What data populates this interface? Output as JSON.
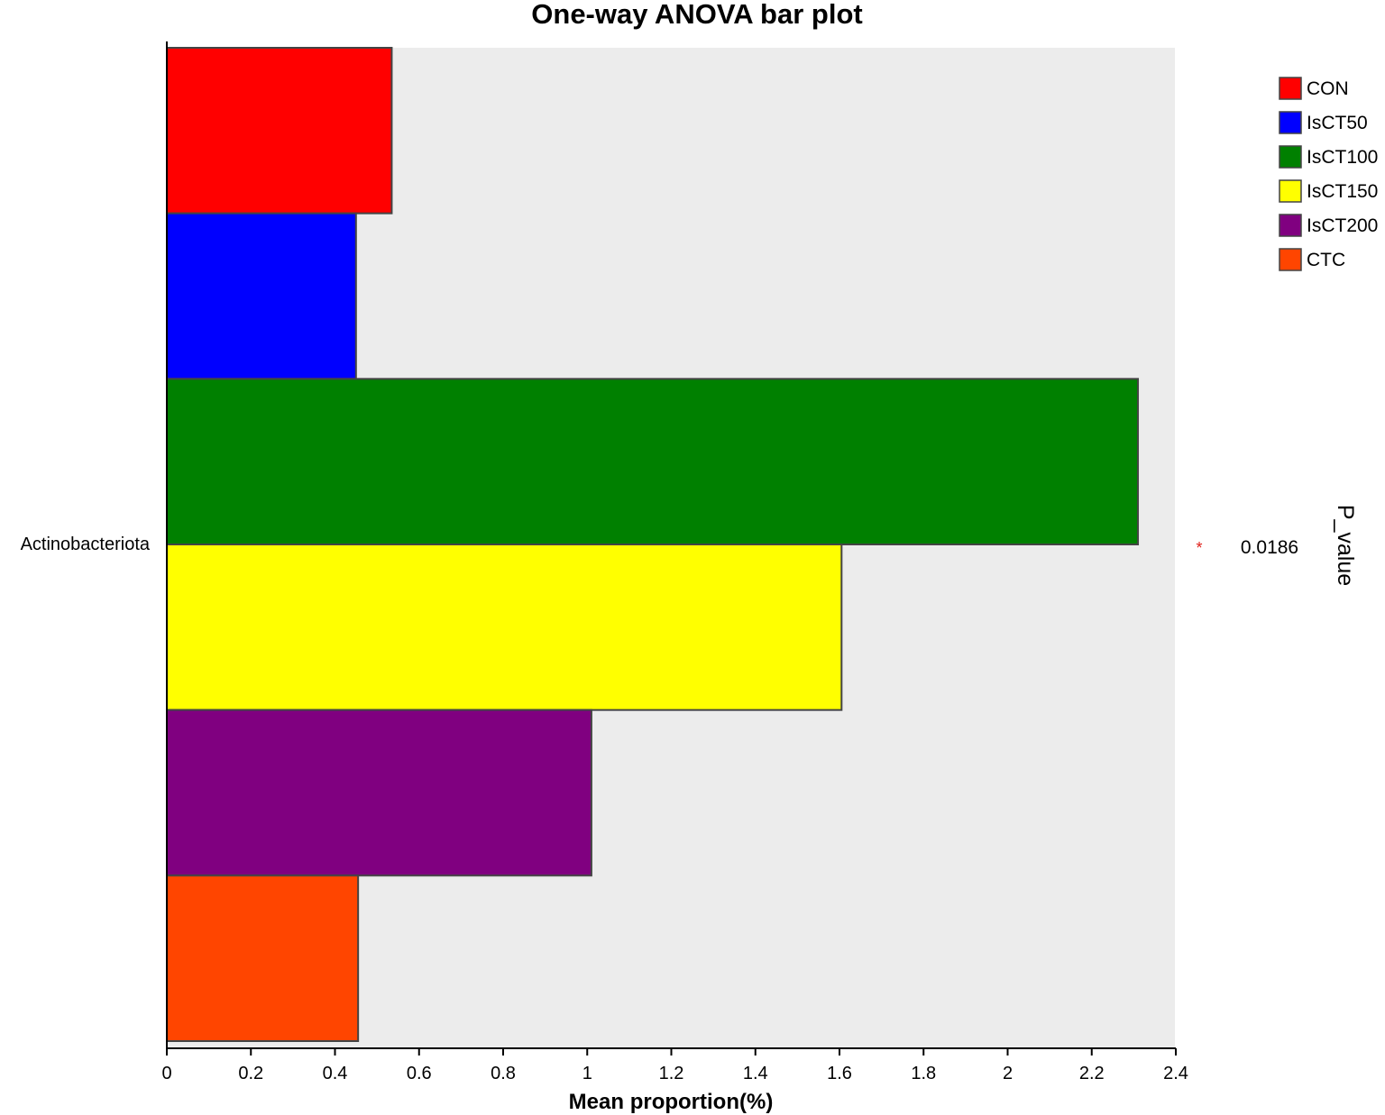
{
  "chart_data": {
    "type": "bar",
    "orientation": "horizontal",
    "title": "One-way ANOVA bar plot",
    "xlabel": "Mean proportion(%)",
    "xlim": [
      0,
      2.4
    ],
    "xticks": [
      "0",
      "0.2",
      "0.4",
      "0.6",
      "0.8",
      "1",
      "1.2",
      "1.4",
      "1.6",
      "1.8",
      "2",
      "2.2",
      "2.4"
    ],
    "categories": [
      "Actinobacteriota"
    ],
    "series": [
      {
        "name": "CON",
        "color": "#ff0000",
        "values": [
          0.535
        ]
      },
      {
        "name": "IsCT50",
        "color": "#0000ff",
        "values": [
          0.45
        ]
      },
      {
        "name": "IsCT100",
        "color": "#008000",
        "values": [
          2.31
        ]
      },
      {
        "name": "IsCT150",
        "color": "#ffff00",
        "values": [
          1.605
        ]
      },
      {
        "name": "IsCT200",
        "color": "#800080",
        "values": [
          1.01
        ]
      },
      {
        "name": "CTC",
        "color": "#ff4500",
        "values": [
          0.455
        ]
      }
    ],
    "p_value": {
      "label": "P_value",
      "values": [
        "0.0186"
      ],
      "significance": [
        "*"
      ]
    },
    "grid": false,
    "background": "#ececec",
    "legend": "top-right"
  }
}
